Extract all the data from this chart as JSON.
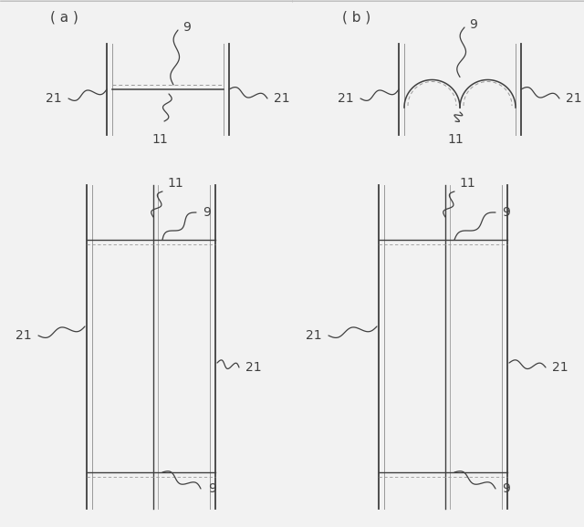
{
  "fig_width": 6.4,
  "fig_height": 5.78,
  "bg_color": "#f2f2f2",
  "line_color": "#404040",
  "gray_color": "#999999",
  "label_color": "#222222",
  "font_size": 10,
  "label_a": "( a )",
  "label_b": "( b )"
}
